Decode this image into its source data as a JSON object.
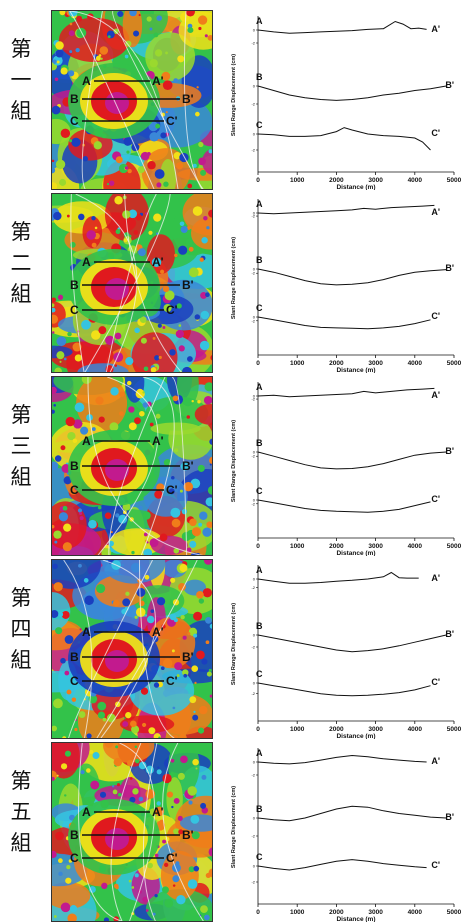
{
  "colors": {
    "line": "#111111",
    "text": "#111111",
    "map_palette": [
      "#1a3fbf",
      "#3a87d8",
      "#35c4e0",
      "#33c24a",
      "#9ad92e",
      "#f2e018",
      "#f07d1a",
      "#e0191e",
      "#c21a8e"
    ]
  },
  "groups": [
    {
      "label": [
        "第",
        "一",
        "組"
      ]
    },
    {
      "label": [
        "第",
        "二",
        "組"
      ]
    },
    {
      "label": [
        "第",
        "三",
        "組"
      ]
    },
    {
      "label": [
        "第",
        "四",
        "組"
      ]
    },
    {
      "label": [
        "第",
        "五",
        "組"
      ]
    }
  ],
  "map_lines": [
    {
      "start": "A",
      "end": "A'"
    },
    {
      "start": "B",
      "end": "B'"
    },
    {
      "start": "C",
      "end": "C'"
    }
  ],
  "chart_data": {
    "type": "line",
    "xlabel": "Distance (m)",
    "ylabel": "Slant Range Displacement (cm)",
    "xlim": [
      0,
      5000
    ],
    "x_ticks": [
      "0",
      "1000",
      "2000",
      "3000",
      "4000",
      "5000"
    ],
    "y_ticks": [
      "0",
      "-2"
    ],
    "panels": [
      {
        "series": [
          {
            "name": "A",
            "end": "A'",
            "x": [
              0,
              400,
              800,
              1200,
              1600,
              2000,
              2400,
              2800,
              3200,
              3500,
              3700,
              3900,
              4100,
              4300
            ],
            "y": [
              0,
              -0.3,
              -0.5,
              -0.4,
              -0.3,
              -0.2,
              -0.1,
              0.1,
              0.2,
              1.3,
              0.9,
              0.2,
              0.3,
              0.1
            ]
          },
          {
            "name": "B",
            "end": "B'",
            "x": [
              0,
              400,
              800,
              1200,
              1600,
              2000,
              2400,
              2800,
              3200,
              3600,
              4000,
              4400,
              4800
            ],
            "y": [
              0,
              -0.5,
              -1,
              -1.3,
              -1.5,
              -1.6,
              -1.5,
              -1.3,
              -1,
              -0.8,
              -0.5,
              -0.3,
              0
            ]
          },
          {
            "name": "C",
            "end": "C'",
            "x": [
              0,
              400,
              800,
              1200,
              1600,
              2000,
              2200,
              2400,
              2800,
              3200,
              3600,
              4000,
              4200,
              4400
            ],
            "y": [
              0,
              -0.1,
              -0.3,
              -0.3,
              -0.2,
              0.3,
              0.8,
              0.5,
              0,
              -0.2,
              -0.3,
              -0.5,
              -1,
              -2
            ]
          }
        ]
      },
      {
        "series": [
          {
            "name": "A",
            "end": "A'",
            "x": [
              0,
              400,
              800,
              1200,
              1600,
              2000,
              2400,
              2700,
              3000,
              3400,
              3800,
              4200,
              4500
            ],
            "y": [
              0,
              -0.5,
              0,
              0.5,
              1,
              1.5,
              2,
              3,
              2.5,
              3.5,
              4,
              4.5,
              5
            ]
          },
          {
            "name": "B",
            "end": "B'",
            "x": [
              0,
              400,
              800,
              1200,
              1600,
              2000,
              2400,
              2800,
              3200,
              3600,
              4000,
              4400,
              4800
            ],
            "y": [
              0,
              -1.5,
              -3.5,
              -5.5,
              -7,
              -7.5,
              -7.2,
              -6.5,
              -5,
              -3,
              -1.5,
              -0.8,
              -0.3
            ]
          },
          {
            "name": "C",
            "end": "C'",
            "x": [
              0,
              400,
              800,
              1200,
              1600,
              2000,
              2400,
              2800,
              3200,
              3600,
              4000,
              4400
            ],
            "y": [
              0,
              -1.5,
              -3,
              -4.5,
              -5.5,
              -5.8,
              -6,
              -6.2,
              -5.8,
              -5,
              -3.5,
              -1.5
            ]
          }
        ]
      },
      {
        "series": [
          {
            "name": "A",
            "end": "A'",
            "x": [
              0,
              400,
              800,
              1200,
              1600,
              2000,
              2400,
              2700,
              3000,
              3400,
              3800,
              4200,
              4500
            ],
            "y": [
              0,
              0.5,
              -0.5,
              0,
              0.5,
              1,
              1.5,
              3,
              2,
              3,
              4,
              4.5,
              5
            ]
          },
          {
            "name": "B",
            "end": "B'",
            "x": [
              0,
              400,
              800,
              1200,
              1600,
              2000,
              2400,
              2800,
              3200,
              3600,
              4000,
              4400,
              4800
            ],
            "y": [
              0,
              -2,
              -4,
              -6,
              -7.5,
              -8,
              -7.8,
              -7,
              -5.5,
              -3.5,
              -1.5,
              -0.5,
              0
            ]
          },
          {
            "name": "C",
            "end": "C'",
            "x": [
              0,
              400,
              800,
              1200,
              1600,
              2000,
              2400,
              2800,
              3200,
              3600,
              4000,
              4400
            ],
            "y": [
              0,
              -1.5,
              -3,
              -4.5,
              -5.5,
              -6,
              -6.2,
              -6.5,
              -6,
              -5,
              -3,
              -1
            ]
          }
        ]
      },
      {
        "series": [
          {
            "name": "A",
            "end": "A'",
            "x": [
              0,
              400,
              800,
              1200,
              1600,
              2000,
              2400,
              2800,
              3200,
              3400,
              3600,
              3800,
              4100
            ],
            "y": [
              0,
              -0.5,
              -1,
              -1,
              -0.8,
              -0.5,
              -0.3,
              0,
              0.5,
              1.5,
              0.3,
              0.2,
              0.2
            ]
          },
          {
            "name": "B",
            "end": "B'",
            "x": [
              0,
              400,
              800,
              1200,
              1600,
              2000,
              2400,
              2800,
              3200,
              3600,
              4000,
              4400,
              4800
            ],
            "y": [
              0,
              -0.5,
              -1,
              -1.5,
              -2,
              -2.5,
              -2.8,
              -2.6,
              -2.3,
              -1.8,
              -1.2,
              -0.6,
              0
            ]
          },
          {
            "name": "C",
            "end": "C'",
            "x": [
              0,
              400,
              800,
              1200,
              1600,
              2000,
              2400,
              2800,
              3200,
              3600,
              4000,
              4400
            ],
            "y": [
              0,
              -0.5,
              -1,
              -1.5,
              -2,
              -2.3,
              -2.4,
              -2.3,
              -2.1,
              -1.8,
              -1.3,
              -0.5
            ]
          }
        ]
      },
      {
        "series": [
          {
            "name": "A",
            "end": "A'",
            "x": [
              0,
              400,
              800,
              1200,
              1600,
              2000,
              2400,
              2800,
              3200,
              3600,
              4000,
              4300
            ],
            "y": [
              0,
              -0.2,
              -0.3,
              -0.1,
              0.3,
              0.7,
              1,
              0.8,
              0.5,
              0.3,
              0.1,
              0
            ]
          },
          {
            "name": "B",
            "end": "B'",
            "x": [
              0,
              400,
              800,
              1200,
              1600,
              2000,
              2400,
              2800,
              3200,
              3600,
              4000,
              4400,
              4800
            ],
            "y": [
              0,
              -0.2,
              -0.3,
              0,
              0.5,
              1,
              1.3,
              1.2,
              0.8,
              0.5,
              0.3,
              0.1,
              0
            ]
          },
          {
            "name": "C",
            "end": "C'",
            "x": [
              0,
              400,
              800,
              1200,
              1600,
              2000,
              2400,
              2800,
              3200,
              3600,
              4000,
              4300
            ],
            "y": [
              0,
              -0.3,
              -0.5,
              -0.2,
              0.2,
              0.6,
              0.8,
              0.6,
              0.3,
              0.1,
              -0.1,
              -0.2
            ]
          }
        ]
      }
    ]
  }
}
